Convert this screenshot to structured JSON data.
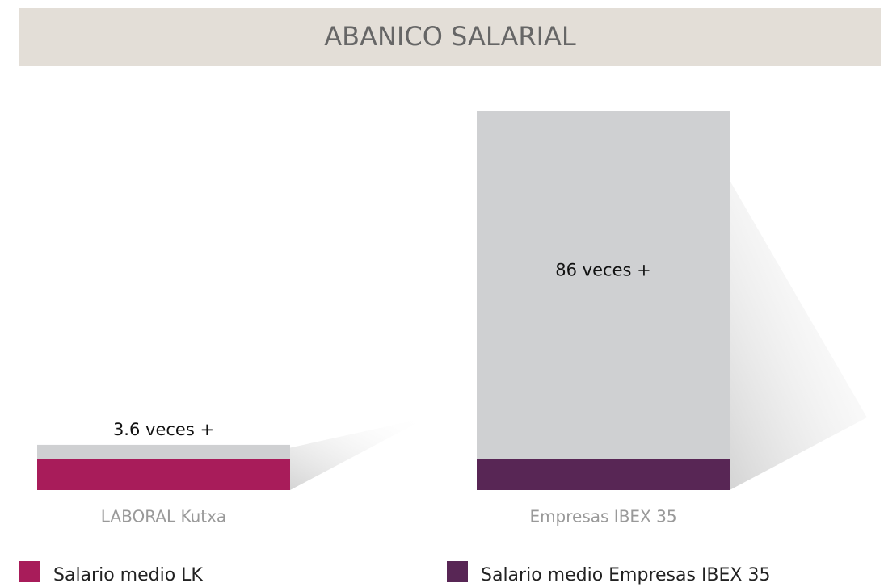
{
  "chart_data": {
    "type": "bar",
    "title": "ABANICO SALARIAL",
    "categories": [
      "LABORAL Kutxa",
      "Empresas IBEX 35"
    ],
    "values": [
      3.6,
      86
    ],
    "value_labels": [
      "3.6 veces +",
      "86 veces +"
    ],
    "color": "#cfd0d2",
    "series": [
      {
        "name": "Salario medio LK",
        "color": "#a81c5a"
      },
      {
        "name": "Salario medio Empresas IBEX 35",
        "color": "#582655"
      }
    ]
  }
}
